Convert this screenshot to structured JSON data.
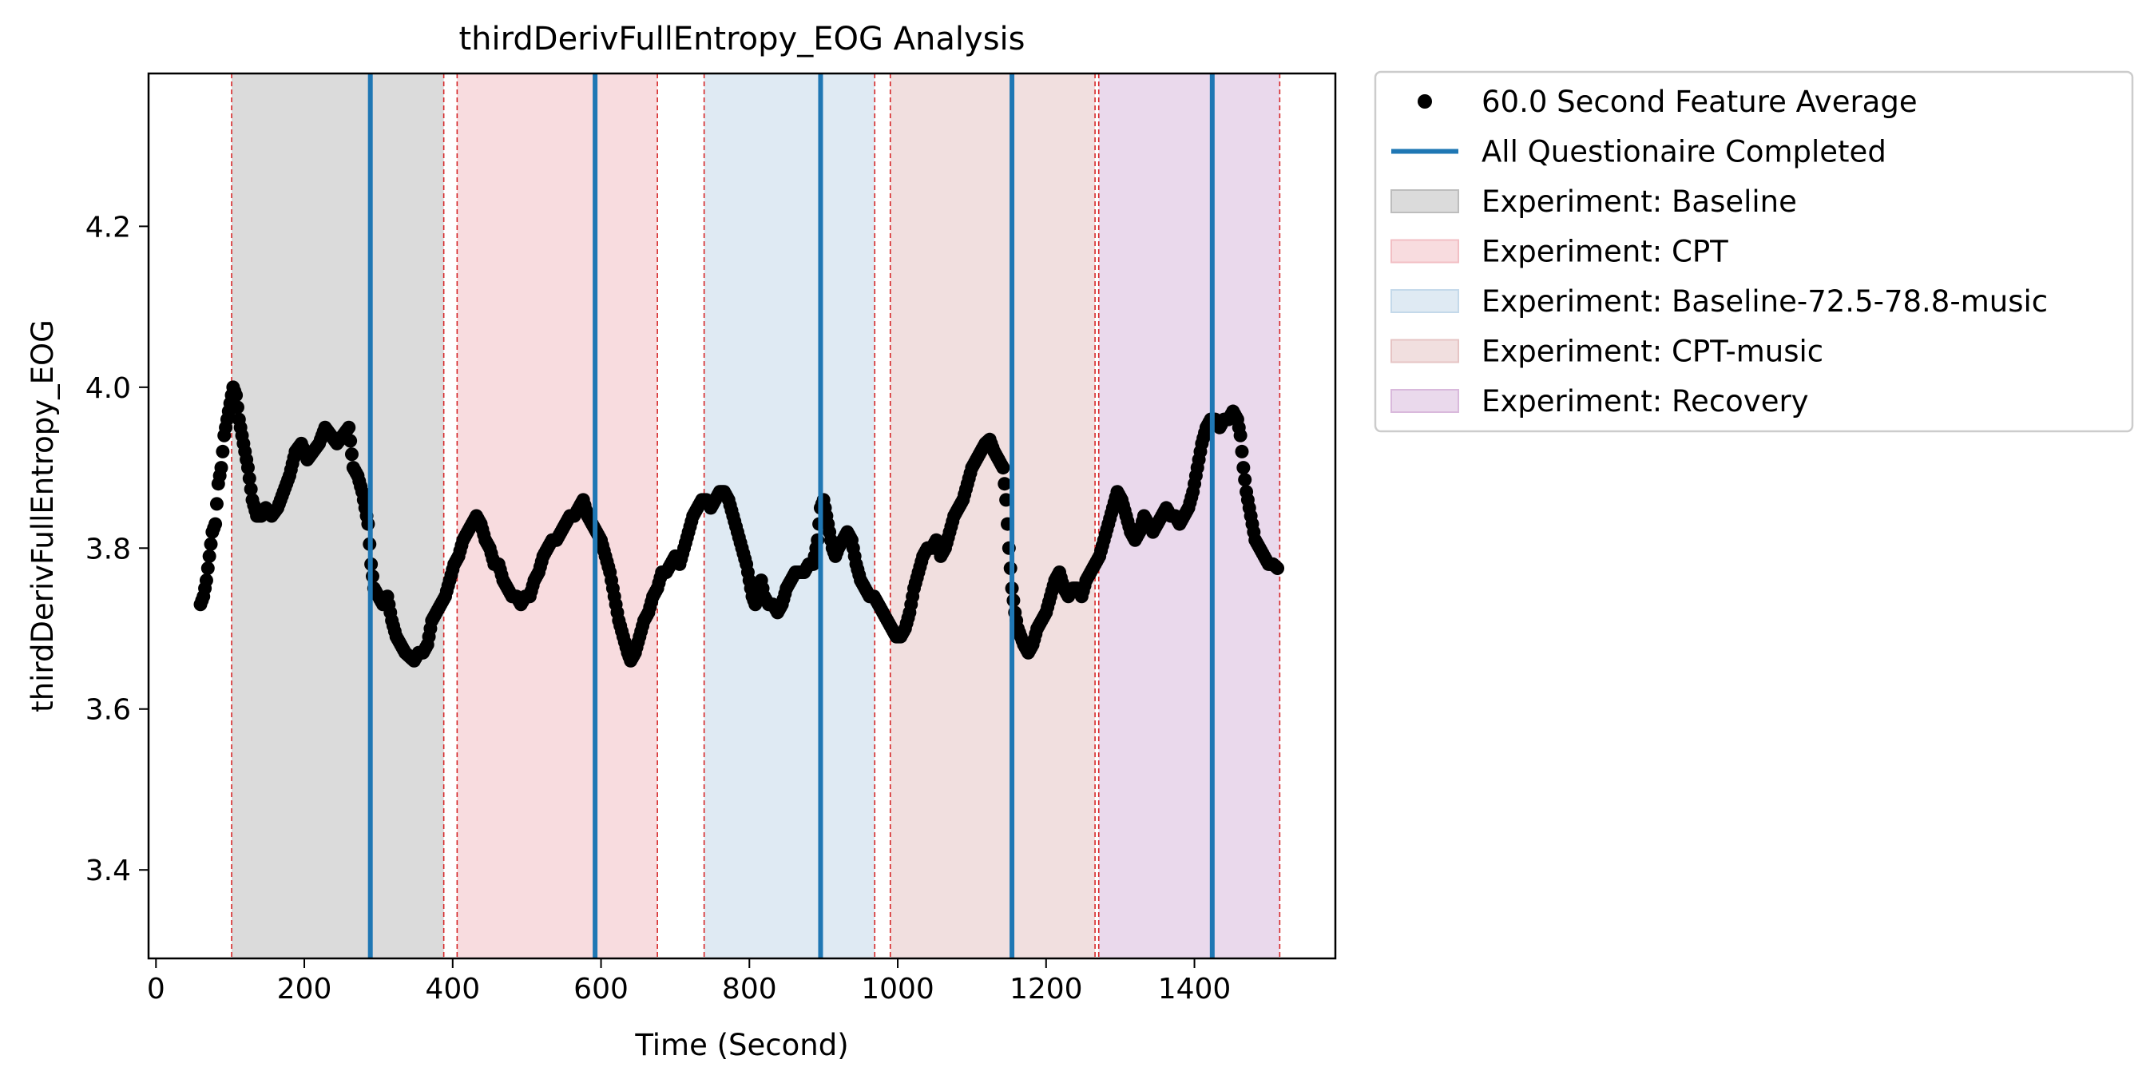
{
  "chart_data": {
    "type": "scatter",
    "title": "thirdDerivFullEntropy_EOG Analysis",
    "xlabel": "Time (Second)",
    "ylabel": "thirdDerivFullEntropy_EOG",
    "xlim": [
      -10,
      1590
    ],
    "ylim": [
      3.29,
      4.39
    ],
    "xticks": [
      0,
      200,
      400,
      600,
      800,
      1000,
      1200,
      1400
    ],
    "yticks": [
      3.4,
      3.6,
      3.8,
      4.0,
      4.2
    ],
    "legend_position": "outside-top-right",
    "series": [
      {
        "name": "60.0 Second Feature Average",
        "color": "#000000",
        "marker": "circle",
        "points": [
          [
            60,
            3.73
          ],
          [
            64,
            3.74
          ],
          [
            68,
            3.76
          ],
          [
            72,
            3.79
          ],
          [
            76,
            3.82
          ],
          [
            80,
            3.83
          ],
          [
            84,
            3.88
          ],
          [
            88,
            3.9
          ],
          [
            92,
            3.94
          ],
          [
            96,
            3.96
          ],
          [
            100,
            3.98
          ],
          [
            104,
            4.0
          ],
          [
            108,
            3.99
          ],
          [
            112,
            3.96
          ],
          [
            118,
            3.93
          ],
          [
            124,
            3.9
          ],
          [
            130,
            3.86
          ],
          [
            136,
            3.84
          ],
          [
            142,
            3.84
          ],
          [
            148,
            3.85
          ],
          [
            156,
            3.84
          ],
          [
            164,
            3.85
          ],
          [
            172,
            3.87
          ],
          [
            180,
            3.89
          ],
          [
            188,
            3.92
          ],
          [
            196,
            3.93
          ],
          [
            204,
            3.91
          ],
          [
            212,
            3.92
          ],
          [
            220,
            3.93
          ],
          [
            228,
            3.95
          ],
          [
            236,
            3.94
          ],
          [
            244,
            3.93
          ],
          [
            252,
            3.94
          ],
          [
            260,
            3.95
          ],
          [
            266,
            3.9
          ],
          [
            272,
            3.89
          ],
          [
            278,
            3.87
          ],
          [
            282,
            3.85
          ],
          [
            286,
            3.83
          ],
          [
            290,
            3.78
          ],
          [
            294,
            3.75
          ],
          [
            300,
            3.74
          ],
          [
            306,
            3.73
          ],
          [
            312,
            3.74
          ],
          [
            318,
            3.71
          ],
          [
            324,
            3.69
          ],
          [
            330,
            3.68
          ],
          [
            336,
            3.67
          ],
          [
            342,
            3.665
          ],
          [
            348,
            3.66
          ],
          [
            354,
            3.67
          ],
          [
            360,
            3.67
          ],
          [
            366,
            3.68
          ],
          [
            372,
            3.71
          ],
          [
            378,
            3.72
          ],
          [
            384,
            3.73
          ],
          [
            390,
            3.74
          ],
          [
            396,
            3.76
          ],
          [
            402,
            3.78
          ],
          [
            408,
            3.79
          ],
          [
            414,
            3.81
          ],
          [
            420,
            3.82
          ],
          [
            426,
            3.83
          ],
          [
            432,
            3.84
          ],
          [
            438,
            3.83
          ],
          [
            444,
            3.81
          ],
          [
            450,
            3.8
          ],
          [
            456,
            3.78
          ],
          [
            462,
            3.78
          ],
          [
            468,
            3.76
          ],
          [
            474,
            3.75
          ],
          [
            480,
            3.74
          ],
          [
            486,
            3.74
          ],
          [
            492,
            3.73
          ],
          [
            498,
            3.74
          ],
          [
            504,
            3.74
          ],
          [
            510,
            3.76
          ],
          [
            516,
            3.77
          ],
          [
            522,
            3.79
          ],
          [
            528,
            3.8
          ],
          [
            534,
            3.81
          ],
          [
            540,
            3.81
          ],
          [
            546,
            3.82
          ],
          [
            552,
            3.83
          ],
          [
            558,
            3.84
          ],
          [
            564,
            3.84
          ],
          [
            570,
            3.85
          ],
          [
            576,
            3.86
          ],
          [
            582,
            3.84
          ],
          [
            588,
            3.83
          ],
          [
            594,
            3.82
          ],
          [
            600,
            3.81
          ],
          [
            606,
            3.79
          ],
          [
            612,
            3.77
          ],
          [
            618,
            3.74
          ],
          [
            624,
            3.71
          ],
          [
            630,
            3.69
          ],
          [
            636,
            3.67
          ],
          [
            640,
            3.66
          ],
          [
            646,
            3.67
          ],
          [
            652,
            3.69
          ],
          [
            658,
            3.71
          ],
          [
            664,
            3.72
          ],
          [
            670,
            3.74
          ],
          [
            676,
            3.75
          ],
          [
            682,
            3.77
          ],
          [
            688,
            3.77
          ],
          [
            694,
            3.78
          ],
          [
            700,
            3.79
          ],
          [
            706,
            3.78
          ],
          [
            712,
            3.8
          ],
          [
            718,
            3.82
          ],
          [
            724,
            3.84
          ],
          [
            730,
            3.85
          ],
          [
            736,
            3.86
          ],
          [
            742,
            3.86
          ],
          [
            748,
            3.85
          ],
          [
            754,
            3.86
          ],
          [
            760,
            3.87
          ],
          [
            766,
            3.87
          ],
          [
            772,
            3.86
          ],
          [
            778,
            3.84
          ],
          [
            784,
            3.82
          ],
          [
            790,
            3.8
          ],
          [
            796,
            3.78
          ],
          [
            800,
            3.76
          ],
          [
            804,
            3.74
          ],
          [
            808,
            3.73
          ],
          [
            812,
            3.74
          ],
          [
            816,
            3.76
          ],
          [
            820,
            3.74
          ],
          [
            826,
            3.73
          ],
          [
            832,
            3.73
          ],
          [
            838,
            3.72
          ],
          [
            844,
            3.73
          ],
          [
            850,
            3.75
          ],
          [
            856,
            3.76
          ],
          [
            862,
            3.77
          ],
          [
            868,
            3.77
          ],
          [
            874,
            3.77
          ],
          [
            880,
            3.78
          ],
          [
            886,
            3.78
          ],
          [
            892,
            3.81
          ],
          [
            896,
            3.85
          ],
          [
            900,
            3.86
          ],
          [
            904,
            3.84
          ],
          [
            908,
            3.82
          ],
          [
            912,
            3.8
          ],
          [
            916,
            3.79
          ],
          [
            920,
            3.8
          ],
          [
            926,
            3.81
          ],
          [
            932,
            3.82
          ],
          [
            938,
            3.81
          ],
          [
            944,
            3.78
          ],
          [
            950,
            3.76
          ],
          [
            956,
            3.75
          ],
          [
            962,
            3.74
          ],
          [
            968,
            3.74
          ],
          [
            974,
            3.73
          ],
          [
            980,
            3.72
          ],
          [
            986,
            3.71
          ],
          [
            992,
            3.7
          ],
          [
            998,
            3.69
          ],
          [
            1004,
            3.69
          ],
          [
            1010,
            3.7
          ],
          [
            1016,
            3.72
          ],
          [
            1022,
            3.75
          ],
          [
            1028,
            3.77
          ],
          [
            1034,
            3.79
          ],
          [
            1040,
            3.8
          ],
          [
            1046,
            3.8
          ],
          [
            1052,
            3.81
          ],
          [
            1058,
            3.79
          ],
          [
            1064,
            3.8
          ],
          [
            1070,
            3.82
          ],
          [
            1076,
            3.84
          ],
          [
            1082,
            3.85
          ],
          [
            1088,
            3.86
          ],
          [
            1094,
            3.88
          ],
          [
            1100,
            3.9
          ],
          [
            1106,
            3.91
          ],
          [
            1112,
            3.92
          ],
          [
            1118,
            3.93
          ],
          [
            1124,
            3.935
          ],
          [
            1130,
            3.92
          ],
          [
            1136,
            3.91
          ],
          [
            1142,
            3.9
          ],
          [
            1146,
            3.86
          ],
          [
            1150,
            3.8
          ],
          [
            1154,
            3.75
          ],
          [
            1158,
            3.72
          ],
          [
            1162,
            3.7
          ],
          [
            1166,
            3.69
          ],
          [
            1170,
            3.68
          ],
          [
            1176,
            3.67
          ],
          [
            1182,
            3.68
          ],
          [
            1188,
            3.7
          ],
          [
            1194,
            3.71
          ],
          [
            1200,
            3.72
          ],
          [
            1206,
            3.74
          ],
          [
            1212,
            3.76
          ],
          [
            1218,
            3.77
          ],
          [
            1224,
            3.75
          ],
          [
            1230,
            3.74
          ],
          [
            1236,
            3.75
          ],
          [
            1242,
            3.75
          ],
          [
            1248,
            3.74
          ],
          [
            1254,
            3.76
          ],
          [
            1260,
            3.77
          ],
          [
            1266,
            3.78
          ],
          [
            1272,
            3.79
          ],
          [
            1278,
            3.81
          ],
          [
            1284,
            3.83
          ],
          [
            1290,
            3.85
          ],
          [
            1296,
            3.87
          ],
          [
            1302,
            3.86
          ],
          [
            1308,
            3.84
          ],
          [
            1314,
            3.82
          ],
          [
            1320,
            3.81
          ],
          [
            1326,
            3.82
          ],
          [
            1332,
            3.84
          ],
          [
            1338,
            3.83
          ],
          [
            1344,
            3.82
          ],
          [
            1350,
            3.83
          ],
          [
            1356,
            3.84
          ],
          [
            1362,
            3.85
          ],
          [
            1368,
            3.84
          ],
          [
            1374,
            3.84
          ],
          [
            1380,
            3.83
          ],
          [
            1386,
            3.84
          ],
          [
            1392,
            3.85
          ],
          [
            1398,
            3.87
          ],
          [
            1404,
            3.9
          ],
          [
            1410,
            3.93
          ],
          [
            1416,
            3.95
          ],
          [
            1422,
            3.96
          ],
          [
            1428,
            3.96
          ],
          [
            1434,
            3.95
          ],
          [
            1440,
            3.96
          ],
          [
            1446,
            3.96
          ],
          [
            1452,
            3.97
          ],
          [
            1458,
            3.96
          ],
          [
            1462,
            3.94
          ],
          [
            1466,
            3.9
          ],
          [
            1470,
            3.87
          ],
          [
            1474,
            3.85
          ],
          [
            1478,
            3.83
          ],
          [
            1482,
            3.81
          ],
          [
            1488,
            3.8
          ],
          [
            1494,
            3.79
          ],
          [
            1500,
            3.78
          ],
          [
            1506,
            3.78
          ],
          [
            1512,
            3.775
          ]
        ]
      },
      {
        "name": "All Questionaire Completed",
        "color": "#1f77b4",
        "kind": "vline",
        "x": [
          289,
          592,
          896,
          1154,
          1424
        ]
      }
    ],
    "regions": [
      {
        "name": "Experiment: Baseline",
        "color": "#bdbdbd",
        "start": 102,
        "end": 388
      },
      {
        "name": "Experiment: CPT",
        "color": "#f2bfc4",
        "start": 406,
        "end": 676
      },
      {
        "name": "Experiment: Baseline-72.5-78.8-music",
        "color": "#c4d9ea",
        "start": 739,
        "end": 969
      },
      {
        "name": "Experiment: CPT-music",
        "color": "#e6c4c4",
        "start": 990,
        "end": 1266
      },
      {
        "name": "Experiment: Recovery",
        "color": "#d9b9dc",
        "start": 1271,
        "end": 1515
      }
    ],
    "region_boundaries": [
      102,
      388,
      406,
      676,
      739,
      969,
      990,
      1266,
      1271,
      1515
    ],
    "boundary_color": "#d62728"
  },
  "legend": {
    "items": [
      {
        "label": "60.0 Second Feature Average",
        "kind": "marker",
        "color": "#000000"
      },
      {
        "label": "All Questionaire Completed",
        "kind": "line",
        "color": "#1f77b4"
      },
      {
        "label": "Experiment: Baseline",
        "kind": "patch",
        "color": "#bdbdbd"
      },
      {
        "label": "Experiment: CPT",
        "kind": "patch",
        "color": "#f2bfc4"
      },
      {
        "label": "Experiment: Baseline-72.5-78.8-music",
        "kind": "patch",
        "color": "#c4d9ea"
      },
      {
        "label": "Experiment: CPT-music",
        "kind": "patch",
        "color": "#e6c4c4"
      },
      {
        "label": "Experiment: Recovery",
        "kind": "patch",
        "color": "#d9b9dc"
      }
    ]
  }
}
